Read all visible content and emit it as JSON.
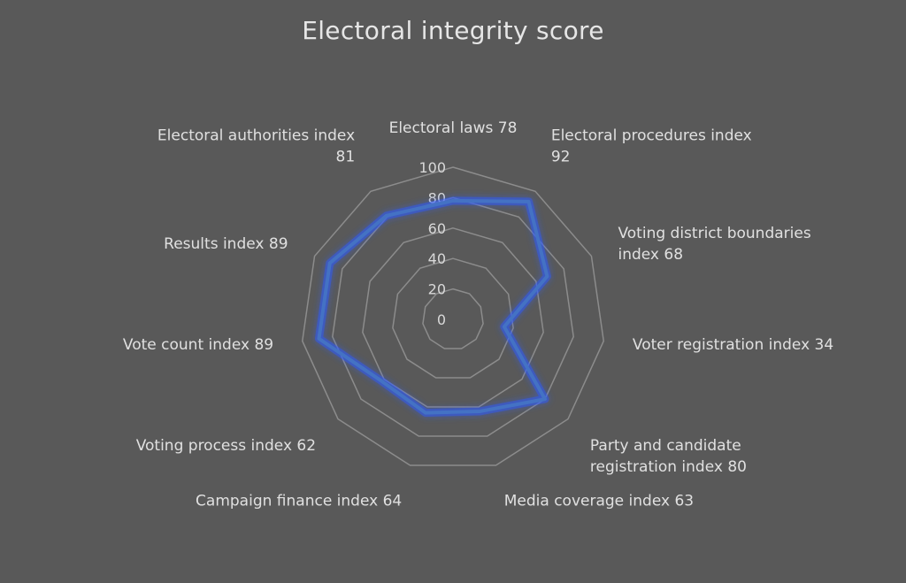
{
  "chart_data": {
    "type": "radar",
    "title": "Electoral integrity score",
    "rlim": [
      0,
      100
    ],
    "ticks": [
      "0",
      "20",
      "40",
      "60",
      "80",
      "100"
    ],
    "grid": true,
    "categories": [
      [
        "Electoral laws 78"
      ],
      [
        "Electoral procedures index",
        "92"
      ],
      [
        "Voting district boundaries",
        "index 68"
      ],
      [
        "Voter registration index 34"
      ],
      [
        "Party and candidate",
        "registration index 80"
      ],
      [
        "Media coverage index 63"
      ],
      [
        "Campaign finance index 64"
      ],
      [
        "Voting process index 62"
      ],
      [
        "Vote count index 89"
      ],
      [
        "Results index 89"
      ],
      [
        "Electoral authorities index",
        "81"
      ]
    ],
    "series": [
      {
        "values": [
          78,
          92,
          68,
          34,
          80,
          63,
          64,
          62,
          89,
          89,
          81
        ]
      }
    ],
    "colors": {
      "background": "#595959",
      "grid": "#8c8c8c",
      "series": "#4472c4",
      "series_glow": "#2f5aff",
      "text": "#d9d9d9"
    }
  }
}
